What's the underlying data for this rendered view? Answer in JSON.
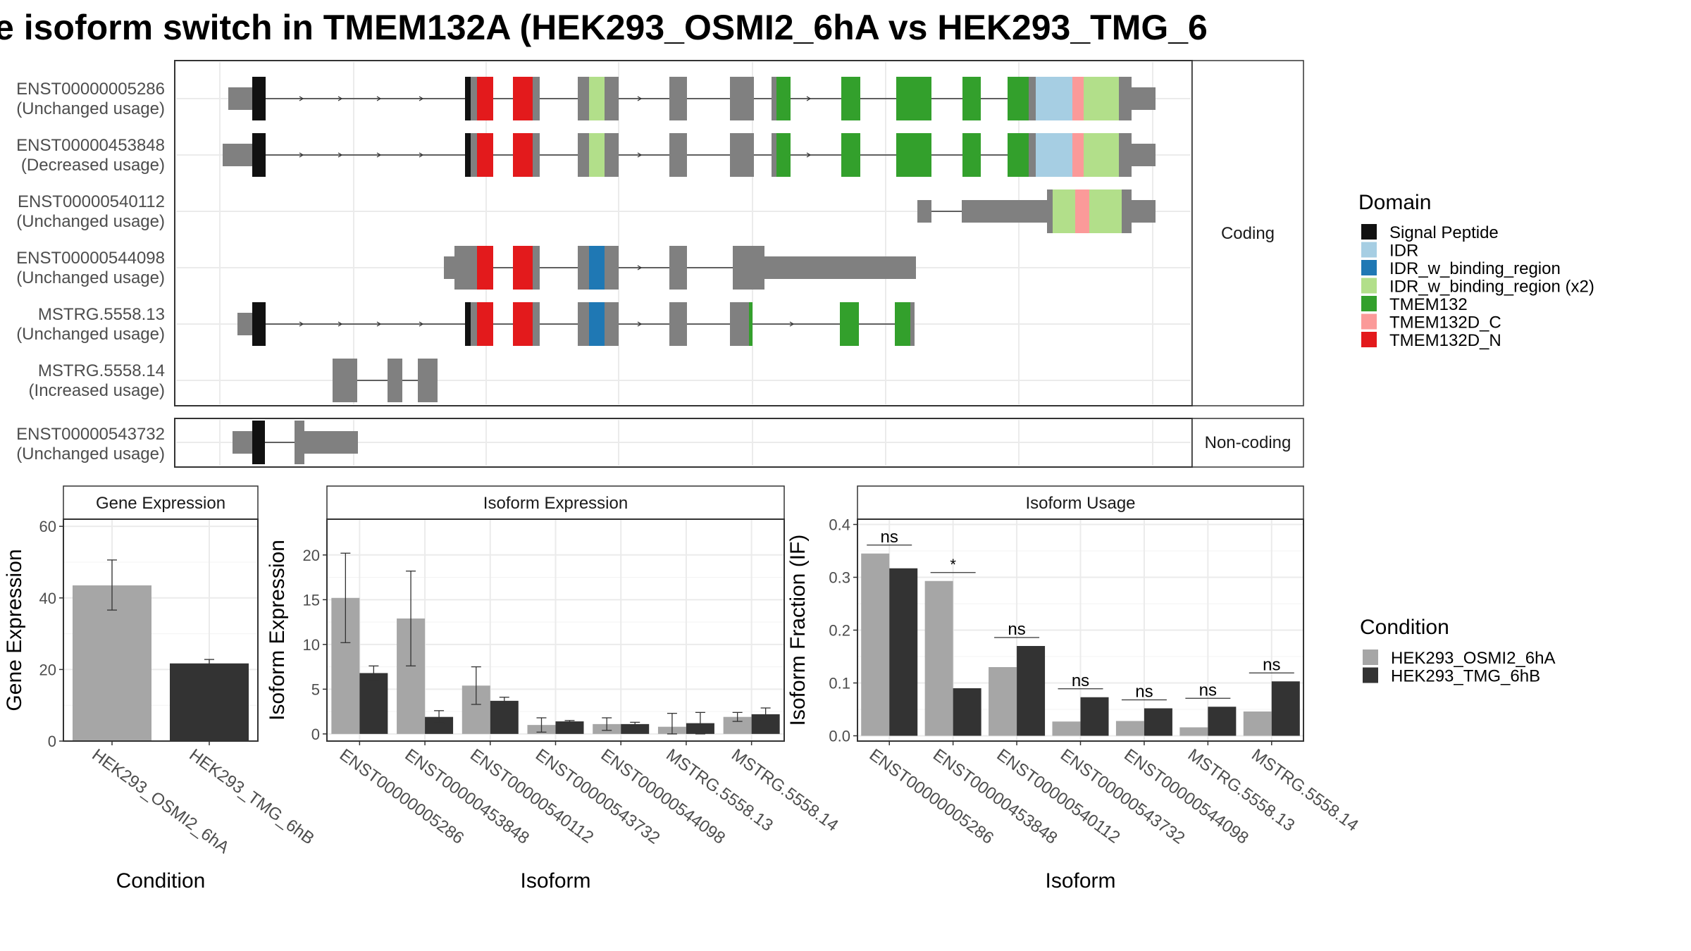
{
  "title": "e isoform switch in TMEM132A (HEK293_OSMI2_6hA vs HEK293_TMG_6",
  "colors": {
    "exon_default": "#808080",
    "condition_1": "#a6a6a6",
    "condition_2": "#333333",
    "panel_border": "#333333",
    "strip_fill": "#ffffff",
    "grid": "#ebebeb"
  },
  "domain_legend": {
    "title": "Domain",
    "items": [
      {
        "name": "Signal Peptide",
        "color": "#111111"
      },
      {
        "name": "IDR",
        "color": "#a6cee3"
      },
      {
        "name": "IDR_w_binding_region",
        "color": "#1f78b4"
      },
      {
        "name": "IDR_w_binding_region (x2)",
        "color": "#b2df8a"
      },
      {
        "name": "TMEM132",
        "color": "#33a02c"
      },
      {
        "name": "TMEM132D_C",
        "color": "#fb9a99"
      },
      {
        "name": "TMEM132D_N",
        "color": "#e31a1c"
      }
    ]
  },
  "condition_legend": {
    "title": "Condition",
    "items": [
      {
        "name": "HEK293_OSMI2_6hA",
        "color": "#a6a6a6"
      },
      {
        "name": "HEK293_TMG_6hB",
        "color": "#333333"
      }
    ]
  },
  "structure": {
    "coding_label": "Coding",
    "noncoding_label": "Non-coding",
    "coding_isoforms": [
      {
        "id": "ENST00000005286",
        "usage": "(Unchanged usage)"
      },
      {
        "id": "ENST00000453848",
        "usage": "(Decreased usage)"
      },
      {
        "id": "ENST00000540112",
        "usage": "(Unchanged usage)"
      },
      {
        "id": "ENST00000544098",
        "usage": "(Unchanged usage)"
      },
      {
        "id": "MSTRG.5558.13",
        "usage": "(Unchanged usage)"
      },
      {
        "id": "MSTRG.5558.14",
        "usage": "(Increased usage)"
      }
    ],
    "noncoding_isoforms": [
      {
        "id": "ENST00000543732",
        "usage": "(Unchanged usage)"
      }
    ]
  },
  "chart_data": [
    {
      "type": "bar",
      "title": "Gene Expression",
      "xlabel": "Condition",
      "ylabel": "Gene Expression",
      "categories": [
        "HEK293_OSMI2_6hA",
        "HEK293_TMG_6hB"
      ],
      "values": [
        43.5,
        21.7
      ],
      "err_low": [
        36.6,
        20.6
      ],
      "err_high": [
        50.6,
        22.8
      ],
      "ylim": [
        0,
        62
      ],
      "yticks": [
        0,
        20,
        40,
        60
      ]
    },
    {
      "type": "bar",
      "title": "Isoform Expression",
      "xlabel": "Isoform",
      "ylabel": "Isoform Expression",
      "categories": [
        "ENST00000005286",
        "ENST00000453848",
        "ENST00000540112",
        "ENST00000543732",
        "ENST00000544098",
        "MSTRG.5558.13",
        "MSTRG.5558.14"
      ],
      "series": [
        {
          "name": "HEK293_OSMI2_6hA",
          "values": [
            15.2,
            12.9,
            5.4,
            1.0,
            1.1,
            0.8,
            1.9
          ],
          "err_low": [
            10.2,
            7.6,
            3.3,
            0.2,
            0.4,
            0.0,
            1.4
          ],
          "err_high": [
            20.2,
            18.2,
            7.5,
            1.8,
            1.8,
            2.3,
            2.4
          ]
        },
        {
          "name": "HEK293_TMG_6hB",
          "values": [
            6.8,
            1.9,
            3.7,
            1.4,
            1.1,
            1.2,
            2.2
          ],
          "err_low": [
            6.0,
            1.2,
            3.3,
            1.3,
            0.9,
            0.0,
            1.5
          ],
          "err_high": [
            7.6,
            2.6,
            4.1,
            1.5,
            1.3,
            2.4,
            2.9
          ]
        }
      ],
      "ylim": [
        -0.8,
        24
      ],
      "yticks": [
        0,
        5,
        10,
        15,
        20
      ]
    },
    {
      "type": "bar",
      "title": "Isoform Usage",
      "xlabel": "Isoform",
      "ylabel": "Isoform Fraction (IF)",
      "categories": [
        "ENST00000005286",
        "ENST00000453848",
        "ENST00000540112",
        "ENST00000543732",
        "ENST00000544098",
        "MSTRG.5558.13",
        "MSTRG.5558.14"
      ],
      "series": [
        {
          "name": "HEK293_OSMI2_6hA",
          "values": [
            0.345,
            0.293,
            0.13,
            0.027,
            0.028,
            0.016,
            0.046
          ]
        },
        {
          "name": "HEK293_TMG_6hB",
          "values": [
            0.317,
            0.09,
            0.17,
            0.073,
            0.052,
            0.055,
            0.103
          ]
        }
      ],
      "significance": [
        "ns",
        "*",
        "ns",
        "ns",
        "ns",
        "ns",
        "ns"
      ],
      "ylim": [
        -0.01,
        0.41
      ],
      "yticks": [
        0.0,
        0.1,
        0.2,
        0.3,
        0.4
      ],
      "ytick_labels": [
        "0.0",
        "0.1",
        "0.2",
        "0.3",
        "0.4"
      ]
    }
  ]
}
